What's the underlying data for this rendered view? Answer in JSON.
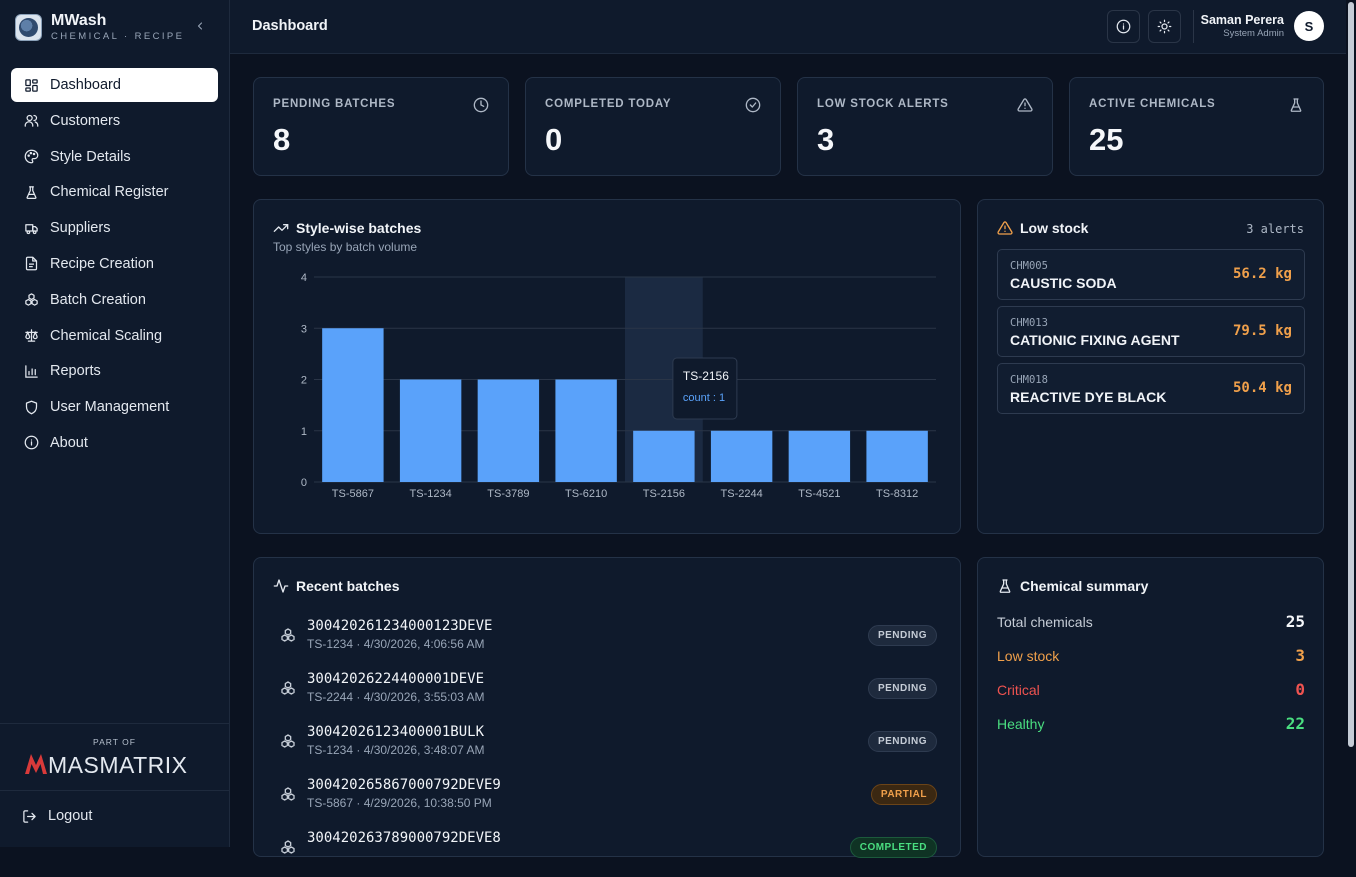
{
  "brand": {
    "name": "MWash",
    "sub": "CHEMICAL · RECIPE"
  },
  "nav": [
    {
      "label": "Dashboard",
      "icon": "grid-icon",
      "active": true
    },
    {
      "label": "Customers",
      "icon": "users-icon"
    },
    {
      "label": "Style Details",
      "icon": "palette-icon"
    },
    {
      "label": "Chemical Register",
      "icon": "flask-icon"
    },
    {
      "label": "Suppliers",
      "icon": "truck-icon"
    },
    {
      "label": "Recipe Creation",
      "icon": "file-icon"
    },
    {
      "label": "Batch Creation",
      "icon": "boxes-icon"
    },
    {
      "label": "Chemical Scaling",
      "icon": "scale-icon"
    },
    {
      "label": "Reports",
      "icon": "bar-chart-icon"
    },
    {
      "label": "User Management",
      "icon": "shield-icon"
    },
    {
      "label": "About",
      "icon": "info-icon"
    }
  ],
  "footer": {
    "part_of": "PART OF",
    "partner": "MASMATRIX",
    "logout": "Logout"
  },
  "header": {
    "title": "Dashboard",
    "user_name": "Saman Perera",
    "user_role": "System Admin",
    "avatar_initial": "S"
  },
  "stats": [
    {
      "label": "PENDING BATCHES",
      "value": "8",
      "icon": "clock-icon"
    },
    {
      "label": "COMPLETED TODAY",
      "value": "0",
      "icon": "check-circle-icon"
    },
    {
      "label": "LOW STOCK ALERTS",
      "value": "3",
      "icon": "alert-triangle-icon"
    },
    {
      "label": "ACTIVE CHEMICALS",
      "value": "25",
      "icon": "flask-icon"
    }
  ],
  "style_chart": {
    "title": "Style-wise batches",
    "subtitle": "Top styles by batch volume",
    "tooltip": {
      "category": "TS-2156",
      "text": "count : 1"
    }
  },
  "chart_data": {
    "type": "bar",
    "categories": [
      "TS-5867",
      "TS-1234",
      "TS-3789",
      "TS-6210",
      "TS-2156",
      "TS-2244",
      "TS-4521",
      "TS-8312"
    ],
    "values": [
      3,
      2,
      2,
      2,
      1,
      1,
      1,
      1
    ],
    "ylim": [
      0,
      4
    ],
    "yticks": [
      "0",
      "1",
      "2",
      "3",
      "4"
    ],
    "grid": true,
    "bar_color": "#5aa2fa",
    "highlight_category": "TS-2156"
  },
  "low_stock": {
    "title": "Low stock",
    "count_label": "3 alerts",
    "items": [
      {
        "code": "CHM005",
        "name": "CAUSTIC SODA",
        "qty": "56.2 kg"
      },
      {
        "code": "CHM013",
        "name": "CATIONIC FIXING AGENT",
        "qty": "79.5 kg"
      },
      {
        "code": "CHM018",
        "name": "REACTIVE DYE BLACK",
        "qty": "50.4 kg"
      }
    ]
  },
  "recent": {
    "title": "Recent batches",
    "rows": [
      {
        "id": "300420261234000123DEVE",
        "meta": "TS-1234 · 4/30/2026, 4:06:56 AM",
        "status": "PENDING",
        "kind": "pending"
      },
      {
        "id": "30042026224400001DEVE",
        "meta": "TS-2244 · 4/30/2026, 3:55:03 AM",
        "status": "PENDING",
        "kind": "pending"
      },
      {
        "id": "30042026123400001BULK",
        "meta": "TS-1234 · 4/30/2026, 3:48:07 AM",
        "status": "PENDING",
        "kind": "pending"
      },
      {
        "id": "300420265867000792DEVE9",
        "meta": "TS-5867 · 4/29/2026, 10:38:50 PM",
        "status": "PARTIAL",
        "kind": "partial"
      },
      {
        "id": "300420263789000792DEVE8",
        "meta": "",
        "status": "COMPLETED",
        "kind": "completed"
      }
    ]
  },
  "summary": {
    "title": "Chemical summary",
    "rows": [
      {
        "label": "Total chemicals",
        "value": "25",
        "color": "#c5ccd6",
        "value_color": "#f5f7fa"
      },
      {
        "label": "Low stock",
        "value": "3",
        "color": "#f0a04b",
        "value_color": "#f0a04b"
      },
      {
        "label": "Critical",
        "value": "0",
        "color": "#ef5350",
        "value_color": "#ef5350"
      },
      {
        "label": "Healthy",
        "value": "22",
        "color": "#4ade80",
        "value_color": "#4ade80"
      }
    ]
  }
}
